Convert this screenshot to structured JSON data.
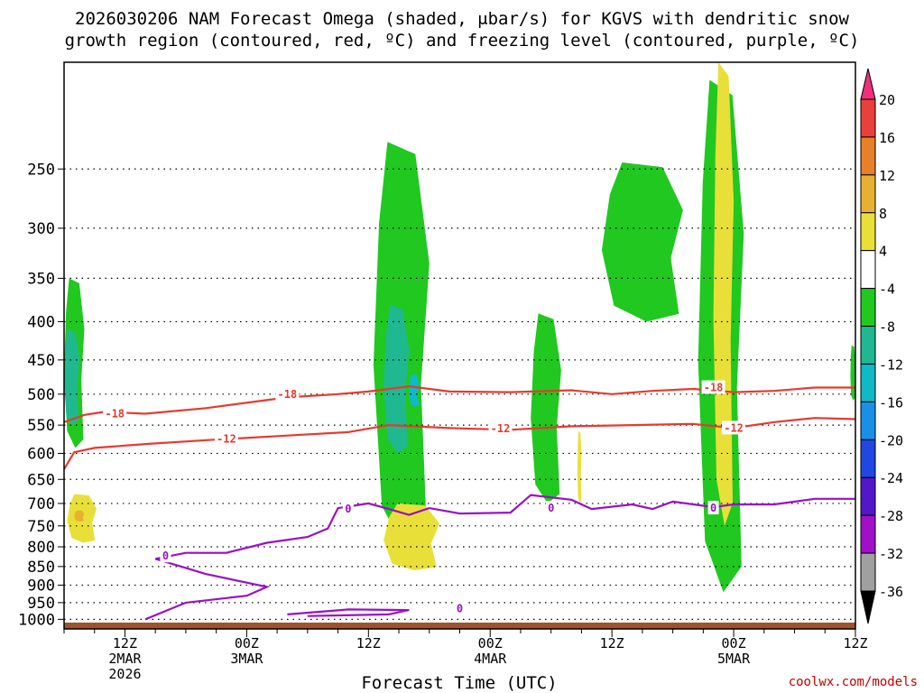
{
  "chart_data": {
    "type": "time-height cross section",
    "title_lines": [
      "2026030206 NAM Forecast Omega (shaded, μbar/s) for KGVS with dendritic snow",
      "growth region (contoured, red, ºC) and freezing level (contoured, purple, ºC)"
    ],
    "xlabel": "Forecast Time (UTC)",
    "credit": "coolwx.com/models",
    "x_range_hours": [
      6,
      84
    ],
    "x_ticks": [
      {
        "hour": 12,
        "lines": [
          "12Z",
          "2MAR",
          "2026"
        ]
      },
      {
        "hour": 24,
        "lines": [
          "00Z",
          "3MAR"
        ]
      },
      {
        "hour": 36,
        "lines": [
          "12Z"
        ]
      },
      {
        "hour": 48,
        "lines": [
          "00Z",
          "4MAR"
        ]
      },
      {
        "hour": 60,
        "lines": [
          "12Z"
        ]
      },
      {
        "hour": 72,
        "lines": [
          "00Z",
          "5MAR"
        ]
      },
      {
        "hour": 84,
        "lines": [
          "12Z"
        ]
      }
    ],
    "y_axis": {
      "unit": "hPa",
      "range": [
        1030,
        180
      ],
      "ticks": [
        250,
        300,
        350,
        400,
        450,
        500,
        550,
        600,
        650,
        700,
        750,
        800,
        850,
        900,
        950,
        1000
      ]
    },
    "colorbar": {
      "levels": [
        "20",
        "16",
        "12",
        "8",
        "4",
        "-4",
        "-8",
        "-12",
        "-16",
        "-20",
        "-24",
        "-28",
        "-32",
        "-36"
      ],
      "colors": [
        "#f0307c",
        "#e8403a",
        "#e8802a",
        "#e8b030",
        "#e8e038",
        "#ffffff",
        "#20c820",
        "#20b890",
        "#10b8c8",
        "#1890e8",
        "#2048e0",
        "#5018c8",
        "#a010c8",
        "#a0a0a0",
        "#000000"
      ]
    },
    "dgz_contours": [
      {
        "name": "-18",
        "label": "-18",
        "label_positions": [
          [
            11,
            531
          ],
          [
            28,
            500
          ],
          [
            70,
            490
          ]
        ],
        "points": [
          [
            6,
            545
          ],
          [
            8,
            533
          ],
          [
            10,
            528
          ],
          [
            14,
            531
          ],
          [
            20,
            522
          ],
          [
            28,
            505
          ],
          [
            33,
            500
          ],
          [
            36,
            496
          ],
          [
            40,
            488
          ],
          [
            44,
            496
          ],
          [
            50,
            497
          ],
          [
            56,
            494
          ],
          [
            60,
            500
          ],
          [
            64,
            495
          ],
          [
            68,
            492
          ],
          [
            72,
            497
          ],
          [
            76,
            495
          ],
          [
            80,
            490
          ],
          [
            84,
            490
          ]
        ]
      },
      {
        "name": "-12",
        "label": "-12",
        "label_positions": [
          [
            22,
            574
          ],
          [
            49,
            556
          ],
          [
            72,
            555
          ]
        ],
        "points": [
          [
            6,
            630
          ],
          [
            7,
            598
          ],
          [
            9,
            590
          ],
          [
            14,
            583
          ],
          [
            20,
            576
          ],
          [
            28,
            568
          ],
          [
            34,
            562
          ],
          [
            38,
            550
          ],
          [
            44,
            555
          ],
          [
            50,
            558
          ],
          [
            56,
            552
          ],
          [
            62,
            550
          ],
          [
            68,
            548
          ],
          [
            72,
            555
          ],
          [
            76,
            545
          ],
          [
            80,
            538
          ],
          [
            84,
            540
          ]
        ]
      }
    ],
    "freezing_level": {
      "name": "0",
      "label": "0",
      "label_positions": [
        [
          16,
          823
        ],
        [
          34,
          712
        ],
        [
          45,
          968
        ],
        [
          54,
          710
        ],
        [
          70,
          710
        ]
      ],
      "points": [
        [
          15,
          830
        ],
        [
          18,
          815
        ],
        [
          22,
          815
        ],
        [
          26,
          790
        ],
        [
          30,
          776
        ],
        [
          32,
          756
        ],
        [
          33,
          710
        ],
        [
          36,
          700
        ],
        [
          38,
          712
        ],
        [
          40,
          725
        ],
        [
          42,
          710
        ],
        [
          45,
          722
        ],
        [
          50,
          720
        ],
        [
          52,
          682
        ],
        [
          56,
          692
        ],
        [
          58,
          712
        ],
        [
          62,
          702
        ],
        [
          64,
          712
        ],
        [
          66,
          696
        ],
        [
          70,
          708
        ],
        [
          72,
          702
        ],
        [
          76,
          702
        ],
        [
          80,
          690
        ],
        [
          84,
          690
        ]
      ]
    },
    "omega_regions": [
      {
        "level": "-4",
        "note": "upper region",
        "hours": [
          6,
          8
        ],
        "pressure_hpa": [
          350,
          590
        ]
      },
      {
        "level": "-4",
        "note": "upper region",
        "hours": [
          36.5,
          42
        ],
        "pressure_hpa": [
          230,
          800
        ]
      },
      {
        "level": "-4",
        "hours": [
          52,
          55
        ],
        "pressure_hpa": [
          390,
          700
        ]
      },
      {
        "level": "-4",
        "hours": [
          59,
          67
        ],
        "pressure_hpa": [
          245,
          400
        ]
      },
      {
        "level": "-4",
        "hours": [
          68.5,
          73
        ],
        "pressure_hpa": [
          190,
          920
        ]
      },
      {
        "level": "-4",
        "hours": [
          83.5,
          84
        ],
        "pressure_hpa": [
          430,
          510
        ]
      },
      {
        "level": "-8",
        "hours": [
          6,
          7.5
        ],
        "pressure_hpa": [
          410,
          550
        ]
      },
      {
        "level": "-8",
        "hours": [
          37.5,
          40
        ],
        "pressure_hpa": [
          380,
          600
        ]
      },
      {
        "level": "-12",
        "hours": [
          40,
          41
        ],
        "pressure_hpa": [
          470,
          520
        ]
      },
      {
        "level": "4",
        "hours": [
          6.3,
          9.2
        ],
        "pressure_hpa": [
          680,
          790
        ]
      },
      {
        "level": "8",
        "hours": [
          7,
          8
        ],
        "pressure_hpa": [
          715,
          740
        ]
      },
      {
        "level": "4",
        "hours": [
          37.5,
          43
        ],
        "pressure_hpa": [
          700,
          860
        ]
      },
      {
        "level": "4",
        "hours": [
          56.6,
          57
        ],
        "pressure_hpa": [
          560,
          700
        ]
      },
      {
        "level": "4",
        "hours": [
          70,
          72
        ],
        "pressure_hpa": [
          180,
          750
        ]
      }
    ],
    "ground": {
      "color": "#a0522d",
      "pressure_hpa": [
        1030,
        1010
      ]
    }
  }
}
